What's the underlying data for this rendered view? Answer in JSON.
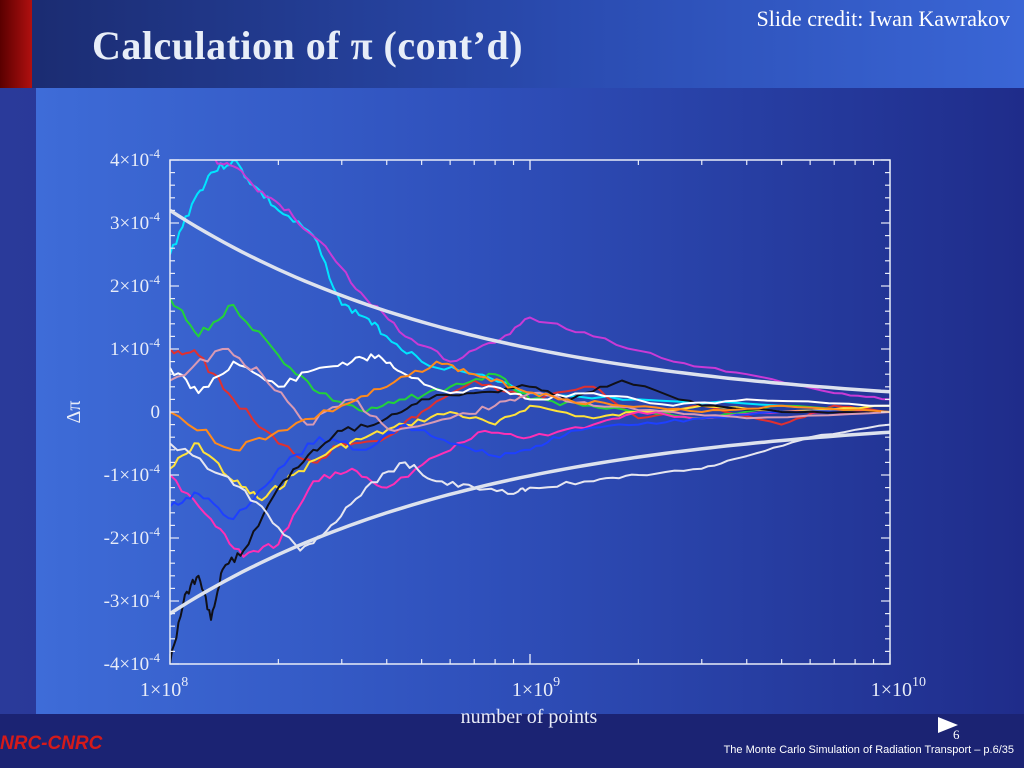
{
  "slide": {
    "title": "Calculation of π (cont’d)",
    "credit": "Slide credit: Iwan Kawrakov",
    "footer_left": "NRC-CNRC",
    "footer_right": "The Monte Carlo Simulation of Radiation Transport – p.6/35",
    "page_number": "6"
  },
  "chart_data": {
    "type": "line",
    "xlabel": "number of points",
    "ylabel": "Δπ",
    "x_scale": "log",
    "xlim": [
      100000000,
      10000000000
    ],
    "ylim": [
      -0.0004,
      0.0004
    ],
    "xticks": [
      {
        "value": 100000000,
        "mant": "1×10",
        "exp": "8"
      },
      {
        "value": 1000000000,
        "mant": "1×10",
        "exp": "9"
      },
      {
        "value": 10000000000,
        "mant": "1×10",
        "exp": "10"
      }
    ],
    "yticks": [
      {
        "value": 0.0004,
        "mant": "4×10",
        "exp": "-4"
      },
      {
        "value": 0.0003,
        "mant": "3×10",
        "exp": "-4"
      },
      {
        "value": 0.0002,
        "mant": "2×10",
        "exp": "-4"
      },
      {
        "value": 0.0001,
        "mant": "1×10",
        "exp": "-4"
      },
      {
        "value": 0,
        "mant": "0",
        "exp": ""
      },
      {
        "value": -0.0001,
        "mant": "-1×10",
        "exp": "-4"
      },
      {
        "value": -0.0002,
        "mant": "-2×10",
        "exp": "-4"
      },
      {
        "value": -0.0003,
        "mant": "-3×10",
        "exp": "-4"
      },
      {
        "value": -0.0004,
        "mant": "-4×10",
        "exp": "-4"
      }
    ],
    "grid": false,
    "envelope": {
      "color": "#dde2ee",
      "x": [
        100000000,
        1000000000,
        10000000000
      ],
      "upper": [
        0.00032,
        0.0001,
        3.2e-05
      ],
      "lower": [
        -0.00032,
        -0.0001,
        -3.2e-05
      ]
    },
    "series": [
      {
        "color": "#00e5ff",
        "x": [
          100000000,
          115000000,
          130000000,
          150000000,
          170000000,
          200000000,
          250000000,
          300000000,
          350000000,
          400000000,
          500000000,
          700000000,
          1000000000,
          2000000000,
          5000000000,
          10000000000
        ],
        "y": [
          0.00025,
          0.00033,
          0.00038,
          0.0004,
          0.00036,
          0.00032,
          0.00028,
          0.00017,
          0.00015,
          0.00012,
          8e-05,
          6e-05,
          3e-05,
          2e-05,
          1e-05,
          0.0
        ]
      },
      {
        "color": "#c93ad6",
        "x": [
          130000000,
          150000000,
          180000000,
          220000000,
          280000000,
          350000000,
          450000000,
          600000000,
          800000000,
          1000000000,
          1500000000,
          2500000000,
          4000000000,
          7000000000,
          10000000000
        ],
        "y": [
          0.0004,
          0.00039,
          0.00035,
          0.00031,
          0.00025,
          0.00018,
          0.00012,
          8e-05,
          0.00011,
          0.00015,
          0.00012,
          8e-05,
          6e-05,
          3e-05,
          2e-05
        ]
      },
      {
        "color": "#e03030",
        "x": [
          100000000,
          120000000,
          150000000,
          200000000,
          250000000,
          300000000,
          400000000,
          500000000,
          700000000,
          1000000000,
          1500000000,
          2000000000,
          3000000000,
          5000000000,
          7000000000,
          10000000000
        ],
        "y": [
          0.0001,
          9e-05,
          2e-05,
          -5e-05,
          -8e-05,
          -5e-05,
          -4e-05,
          0.0,
          5e-05,
          2e-05,
          4e-05,
          -1e-05,
          1e-05,
          -2e-05,
          1e-05,
          0.0
        ]
      },
      {
        "color": "#22d23a",
        "x": [
          100000000,
          120000000,
          150000000,
          200000000,
          260000000,
          350000000,
          450000000,
          600000000,
          800000000,
          1000000000,
          1400000000,
          2000000000,
          3000000000,
          5000000000,
          10000000000
        ],
        "y": [
          0.00018,
          0.00012,
          0.00017,
          9e-05,
          3e-05,
          0.0,
          2e-05,
          4e-05,
          6e-05,
          2e-05,
          1e-05,
          0.0,
          -1e-05,
          1e-05,
          0.0
        ]
      },
      {
        "color": "#ffe23a",
        "x": [
          100000000,
          120000000,
          150000000,
          180000000,
          220000000,
          280000000,
          350000000,
          450000000,
          600000000,
          800000000,
          1000000000,
          1500000000,
          2000000000,
          3000000000,
          5000000000,
          10000000000
        ],
        "y": [
          -9e-05,
          -5e-05,
          -0.00011,
          -0.00014,
          -0.0001,
          -6e-05,
          -4e-05,
          -2e-05,
          0.0,
          -2e-05,
          1e-05,
          -1e-05,
          0.0,
          1e-05,
          0.0,
          1e-05
        ]
      },
      {
        "color": "#ff2fb5",
        "x": [
          100000000,
          130000000,
          160000000,
          200000000,
          250000000,
          320000000,
          400000000,
          550000000,
          750000000,
          1000000000,
          1500000000,
          2000000000,
          3000000000,
          5000000000,
          10000000000
        ],
        "y": [
          -0.0001,
          -0.00017,
          -0.00023,
          -0.00021,
          -0.00011,
          -9e-05,
          -0.00012,
          -7e-05,
          -3e-05,
          -4e-05,
          -2e-05,
          0.0,
          -1e-05,
          0.0,
          0.0
        ]
      },
      {
        "color": "#1e40ff",
        "x": [
          100000000,
          120000000,
          150000000,
          200000000,
          260000000,
          350000000,
          450000000,
          600000000,
          800000000,
          1000000000,
          1300000000,
          2000000000,
          3000000000,
          5000000000,
          10000000000
        ],
        "y": [
          -0.00015,
          -0.00013,
          -0.00017,
          -9e-05,
          -4e-05,
          -6e-05,
          -2e-05,
          -5e-05,
          -7e-05,
          -6e-05,
          -3e-05,
          -2e-05,
          -1e-05,
          0.0,
          0.0
        ]
      },
      {
        "color": "#101018",
        "x": [
          100000000,
          110000000,
          120000000,
          130000000,
          140000000,
          160000000,
          200000000,
          250000000,
          300000000,
          400000000,
          500000000,
          700000000,
          1000000000,
          1300000000,
          1800000000,
          3000000000,
          5000000000,
          10000000000
        ],
        "y": [
          -0.0004,
          -0.00029,
          -0.00026,
          -0.00033,
          -0.00025,
          -0.00022,
          -0.00012,
          -6e-05,
          -3e-05,
          -1e-05,
          2e-05,
          3e-05,
          4e-05,
          2e-05,
          5e-05,
          1e-05,
          0.0,
          0.0
        ]
      },
      {
        "color": "#ffffff",
        "x": [
          100000000,
          120000000,
          150000000,
          200000000,
          260000000,
          320000000,
          380000000,
          450000000,
          600000000,
          800000000,
          1000000000,
          1500000000,
          2500000000,
          4000000000,
          10000000000
        ],
        "y": [
          7e-05,
          3e-05,
          8e-05,
          4e-05,
          7e-05,
          8e-05,
          9e-05,
          6e-05,
          3e-05,
          4e-05,
          2e-05,
          3e-05,
          1e-05,
          2e-05,
          1e-05
        ]
      },
      {
        "color": "#e6e6f0",
        "x": [
          100000000,
          140000000,
          180000000,
          230000000,
          280000000,
          350000000,
          450000000,
          550000000,
          700000000,
          900000000,
          1000000000,
          1500000000,
          2000000000,
          3000000000,
          4000000000,
          6000000000,
          10000000000
        ],
        "y": [
          -5e-05,
          -0.0001,
          -0.00015,
          -0.00022,
          -0.00018,
          -0.00012,
          -8e-05,
          -0.00011,
          -0.00012,
          -0.00013,
          -0.00012,
          -0.00011,
          -0.0001,
          -9e-05,
          -7e-05,
          -4e-05,
          -2e-05
        ]
      },
      {
        "color": "#d89ab4",
        "x": [
          100000000,
          140000000,
          180000000,
          240000000,
          320000000,
          420000000,
          600000000,
          800000000,
          1000000000,
          1500000000,
          2500000000,
          4000000000,
          10000000000
        ],
        "y": [
          5e-05,
          0.0001,
          6e-05,
          -2e-05,
          2e-05,
          -3e-05,
          -1e-05,
          1e-05,
          3e-05,
          1e-05,
          0.0,
          -1e-05,
          0.0
        ]
      },
      {
        "color": "#ff8a1c",
        "x": [
          100000000,
          150000000,
          200000000,
          300000000,
          400000000,
          550000000,
          700000000,
          900000000,
          1200000000,
          1800000000,
          3000000000,
          5000000000,
          10000000000
        ],
        "y": [
          0.0,
          -6e-05,
          -3e-05,
          1e-05,
          4e-05,
          8e-05,
          6e-05,
          4e-05,
          2e-05,
          1e-05,
          0.0,
          1e-05,
          0.0
        ]
      }
    ]
  }
}
